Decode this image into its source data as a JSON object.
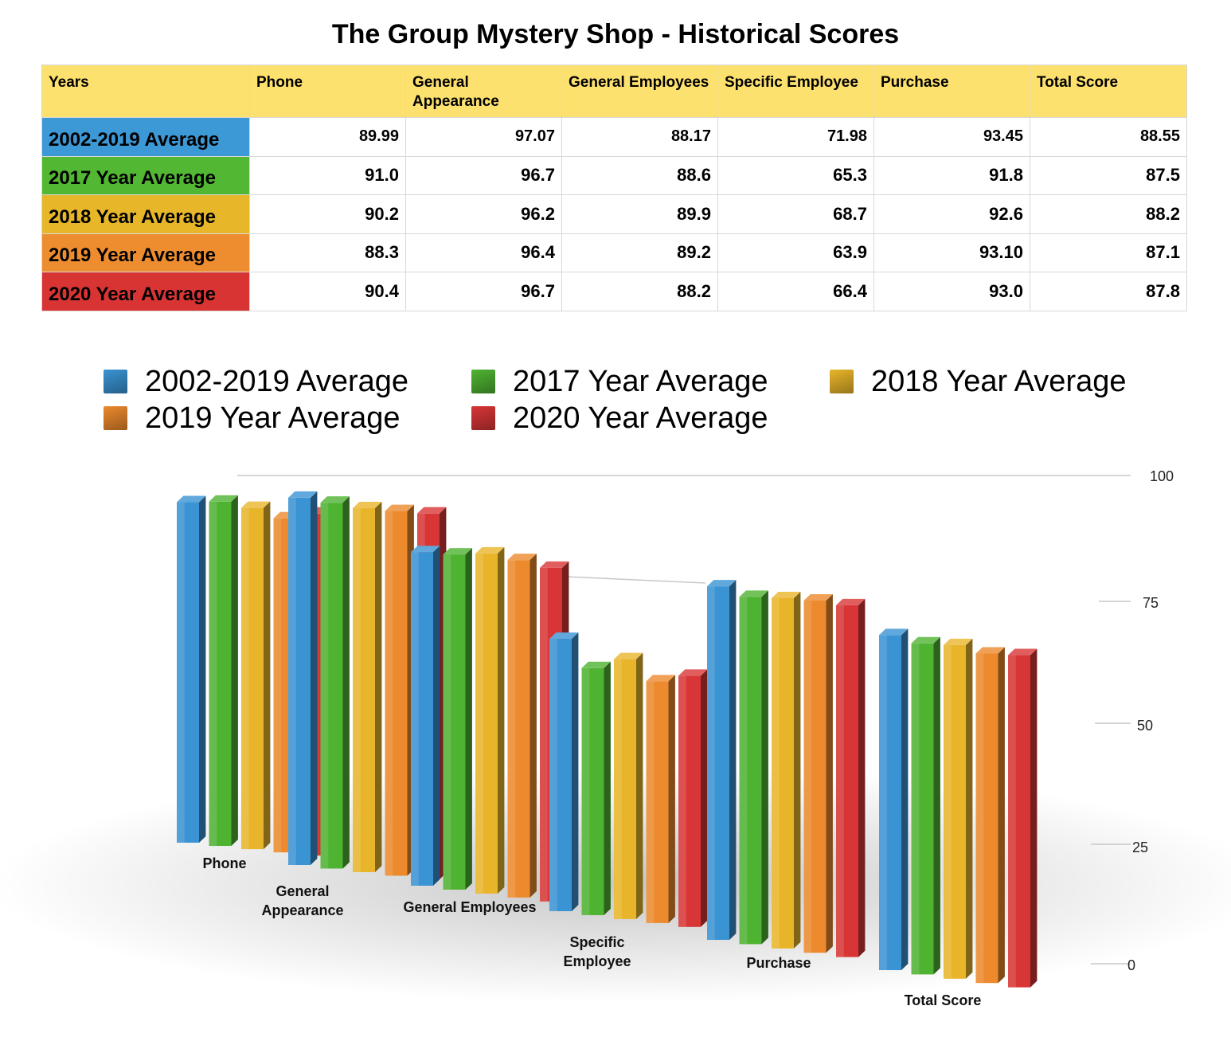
{
  "title": "The Group Mystery Shop - Historical Scores",
  "table": {
    "headers": [
      "Years",
      "Phone",
      "General Appearance",
      "General Employees",
      "Specific Employee",
      "Purchase",
      "Total Score"
    ],
    "rows": [
      {
        "label": "2002-2019 Average",
        "color": "#3d98d6",
        "values": [
          "89.99",
          "97.07",
          "88.17",
          "71.98",
          "93.45",
          "88.55"
        ]
      },
      {
        "label": "2017 Year Average",
        "color": "#52b733",
        "values": [
          "91.0",
          "96.7",
          "88.6",
          "65.3",
          "91.8",
          "87.5"
        ]
      },
      {
        "label": "2018 Year Average",
        "color": "#e7b729",
        "values": [
          "90.2",
          "96.2",
          "89.9",
          "68.7",
          "92.6",
          "88.2"
        ]
      },
      {
        "label": "2019 Year Average",
        "color": "#ee8d2f",
        "values": [
          "88.3",
          "96.4",
          "89.2",
          "63.9",
          "93.10",
          "87.1"
        ]
      },
      {
        "label": "2020 Year Average",
        "color": "#d93434",
        "values": [
          "90.4",
          "96.7",
          "88.2",
          "66.4",
          "93.0",
          "87.8"
        ]
      }
    ]
  },
  "chart_data": {
    "type": "bar",
    "categories": [
      "Phone",
      "General Appearance",
      "General Employees",
      "Specific Employee",
      "Purchase",
      "Total Score"
    ],
    "series": [
      {
        "name": "2002-2019 Average",
        "color": "#3a93d3",
        "values": [
          89.99,
          97.07,
          88.17,
          71.98,
          93.45,
          88.55
        ]
      },
      {
        "name": "2017 Year Average",
        "color": "#4fb332",
        "values": [
          91.0,
          96.7,
          88.6,
          65.3,
          91.8,
          87.5
        ]
      },
      {
        "name": "2018 Year Average",
        "color": "#e8b52a",
        "values": [
          90.2,
          96.2,
          89.9,
          68.7,
          92.6,
          88.2
        ]
      },
      {
        "name": "2019 Year Average",
        "color": "#ec8a2d",
        "values": [
          88.3,
          96.4,
          89.2,
          63.9,
          93.1,
          87.1
        ]
      },
      {
        "name": "2020 Year Average",
        "color": "#d83636",
        "values": [
          90.4,
          96.7,
          88.2,
          66.4,
          93.0,
          87.8
        ]
      }
    ],
    "yticks": [
      "0",
      "25",
      "50",
      "75",
      "100"
    ],
    "ylim": [
      0,
      100
    ],
    "grid": true,
    "legend_position": "top",
    "style": "3d"
  }
}
